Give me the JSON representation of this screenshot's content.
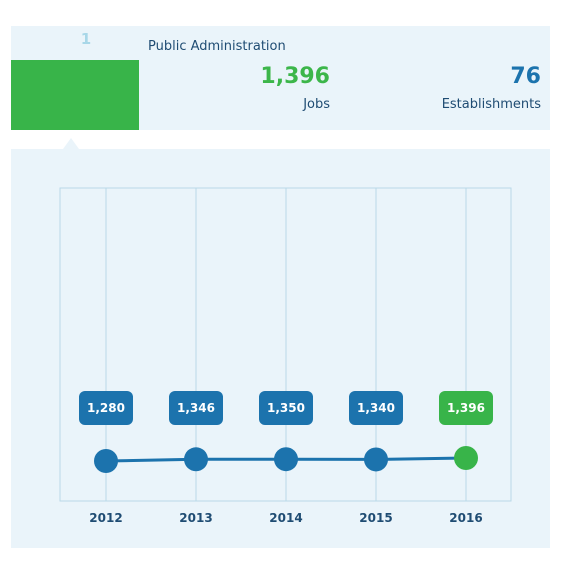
{
  "summary": {
    "rank": "1",
    "sector": "Public Administration",
    "jobs_value": "1,396",
    "jobs_label": "Jobs",
    "establishments_value": "76",
    "establishments_label": "Establishments"
  },
  "colors": {
    "panel_bg": "#eaf4fa",
    "green": "#38b449",
    "blue": "#1c73ad",
    "grid": "#b9d9e8",
    "text": "#1f4c73"
  },
  "chart_data": {
    "type": "line",
    "categories": [
      "2012",
      "2013",
      "2014",
      "2015",
      "2016"
    ],
    "series": [
      {
        "values": [
          1280,
          1346,
          1350,
          1340,
          1396
        ]
      }
    ],
    "labels": [
      "1,280",
      "1,346",
      "1,350",
      "1,340",
      "1,396"
    ],
    "title": "",
    "xlabel": "",
    "ylabel": "",
    "grid": true
  }
}
